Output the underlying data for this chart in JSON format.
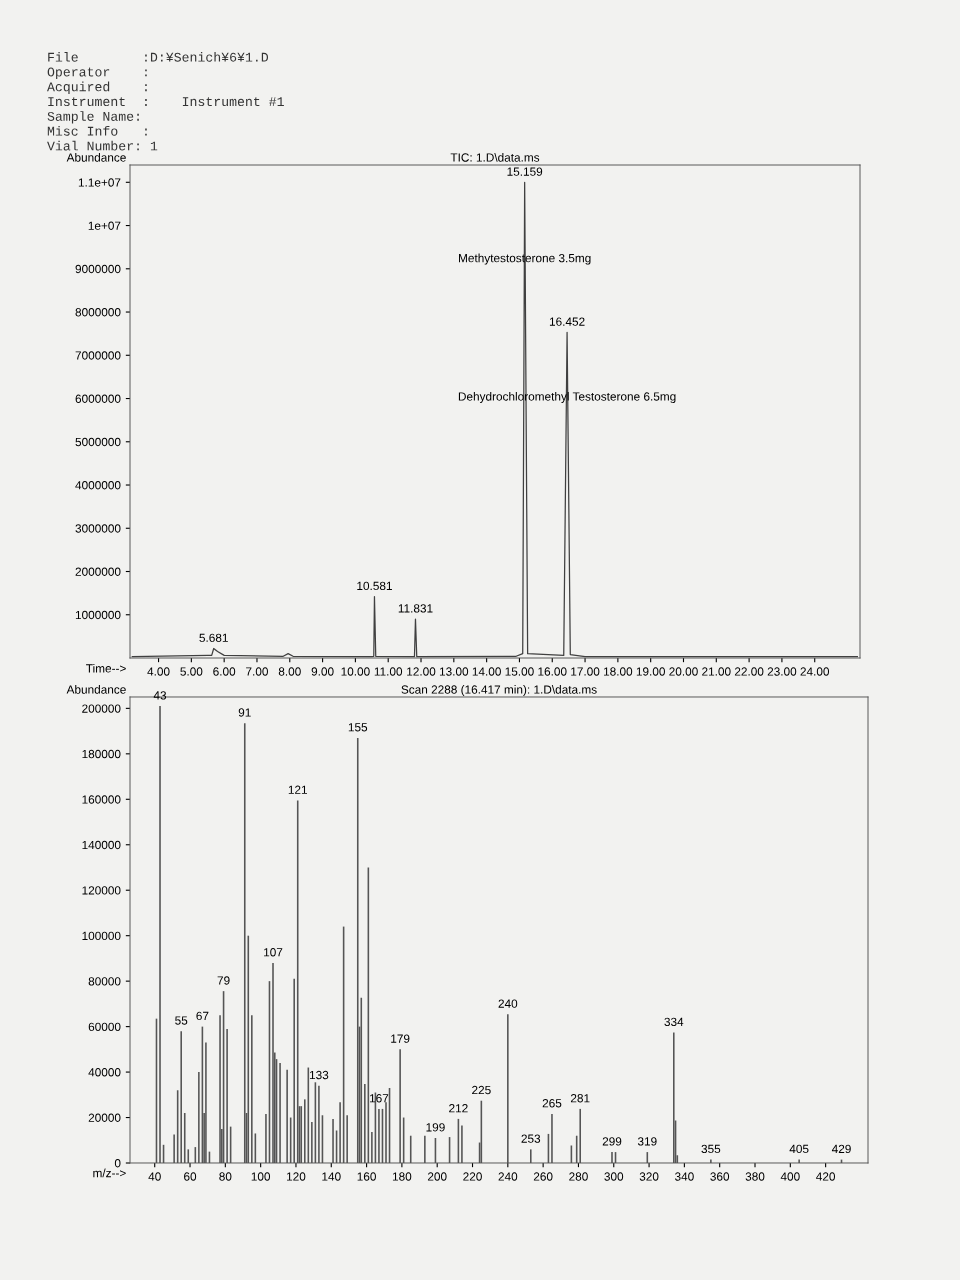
{
  "chart_data": [
    {
      "type": "line",
      "title": "TIC: 1.D\\data.ms",
      "xlabel": "Time-->",
      "ylabel": "Abundance",
      "annotations": [
        "File        :D:¥Senich¥6¥1.D",
        "Operator    :",
        "Acquired    :",
        "Instrument  :    Instrument #1",
        "Sample Name:",
        "Misc Info   :",
        "Vial Number: 1",
        {
          "text": "5.681",
          "x": 5.681,
          "y": 220000
        },
        {
          "text": "10.581",
          "x": 10.581,
          "y": 1420000
        },
        {
          "text": "11.831",
          "x": 11.831,
          "y": 900000
        },
        {
          "text": "15.159",
          "x": 15.159,
          "y": 11000000
        },
        {
          "text": "16.452",
          "x": 16.452,
          "y": 7530000
        },
        {
          "text": "Methytestosterone 3.5mg",
          "x": 15.159,
          "y": 9000000
        },
        {
          "text": "Dehydrochloromethyl Testosterone 6.5mg",
          "x": 16.452,
          "y": 5800000
        }
      ],
      "series": [
        {
          "color": "#404040",
          "x": [
            3.2,
            5.5,
            5.62,
            5.681,
            5.8,
            6.0,
            7.8,
            7.95,
            8.1,
            10.5,
            10.56,
            10.581,
            10.62,
            11.8,
            11.831,
            11.87,
            14.9,
            15.1,
            15.159,
            15.25,
            16.35,
            16.452,
            16.55,
            17.0,
            25.3
          ],
          "values": [
            30000,
            60000,
            60000,
            220000,
            150000,
            60000,
            40000,
            100000,
            40000,
            30000,
            40000,
            1420000,
            40000,
            30000,
            900000,
            30000,
            40000,
            100000,
            11000000,
            100000,
            60000,
            7530000,
            80000,
            30000,
            30000
          ]
        }
      ],
      "xlim": [
        3.13,
        25.38
      ],
      "ylim": [
        0,
        11400000
      ],
      "xticks": [
        {
          "value": 4,
          "label": "4.00"
        },
        {
          "value": 5,
          "label": "5.00"
        },
        {
          "value": 6,
          "label": "6.00"
        },
        {
          "value": 7,
          "label": "7.00"
        },
        {
          "value": 8,
          "label": "8.00"
        },
        {
          "value": 9,
          "label": "9.00"
        },
        {
          "value": 10,
          "label": "10.00"
        },
        {
          "value": 11,
          "label": "11.00"
        },
        {
          "value": 12,
          "label": "12.00"
        },
        {
          "value": 13,
          "label": "13.00"
        },
        {
          "value": 14,
          "label": "14.00"
        },
        {
          "value": 15,
          "label": "15.00"
        },
        {
          "value": 16,
          "label": "16.00"
        },
        {
          "value": 17,
          "label": "17.00"
        },
        {
          "value": 18,
          "label": "18.00"
        },
        {
          "value": 19,
          "label": "19.00"
        },
        {
          "value": 20,
          "label": "20.00"
        },
        {
          "value": 21,
          "label": "21.00"
        },
        {
          "value": 22,
          "label": "22.00"
        },
        {
          "value": 23,
          "label": "23.00"
        },
        {
          "value": 24,
          "label": "24.00"
        }
      ],
      "yticks": [
        1000000,
        2000000,
        3000000,
        4000000,
        5000000,
        6000000,
        7000000,
        8000000,
        9000000,
        {
          "value": 10000000,
          "label": "1e+07"
        },
        {
          "value": 11000000,
          "label": "1.1e+07"
        }
      ],
      "grid": false,
      "legend": false
    },
    {
      "type": "bar",
      "title": "Scan 2288 (16.417 min): 1.D\\data.ms",
      "xlabel": "m/z-->",
      "ylabel": "Abundance",
      "x": [
        41,
        43,
        45,
        51,
        53,
        55,
        57,
        59,
        63,
        65,
        67,
        68,
        69,
        71,
        77,
        78,
        79,
        81,
        83,
        91,
        92,
        93,
        95,
        97,
        103,
        105,
        107,
        108,
        109,
        111,
        115,
        117,
        119,
        121,
        122,
        123,
        125,
        127,
        129,
        131,
        133,
        135,
        141,
        143,
        145,
        147,
        149,
        155,
        156,
        157,
        159,
        161,
        163,
        165,
        167,
        169,
        171,
        173,
        179,
        181,
        185,
        193,
        199,
        207,
        212,
        214,
        224,
        225,
        240,
        253,
        263,
        265,
        276,
        279,
        281,
        299,
        301,
        319,
        334,
        335,
        336,
        355,
        405,
        429
      ],
      "values": [
        63500,
        201000,
        8000,
        12500,
        32000,
        58000,
        22000,
        6000,
        7000,
        40000,
        60000,
        22000,
        53000,
        5000,
        65000,
        15000,
        75600,
        59000,
        16000,
        193500,
        22000,
        100000,
        65000,
        13000,
        21600,
        80000,
        88000,
        48600,
        45700,
        44000,
        41000,
        20000,
        81000,
        159500,
        25000,
        25000,
        28000,
        42000,
        18000,
        35500,
        34000,
        21000,
        19400,
        14300,
        26700,
        104000,
        21000,
        187000,
        60000,
        72700,
        34700,
        130000,
        13600,
        31000,
        23800,
        23800,
        26700,
        33000,
        50000,
        20000,
        12000,
        12000,
        11000,
        11400,
        19400,
        16500,
        9000,
        27400,
        65400,
        6000,
        12800,
        21600,
        7700,
        12000,
        23800,
        4800,
        4800,
        4800,
        57400,
        18700,
        3400,
        1500,
        1500,
        1500
      ],
      "color": "#555555",
      "annotations": [
        {
          "text": "43",
          "x": 43,
          "y": 201000
        },
        {
          "text": "55",
          "x": 55,
          "y": 58000
        },
        {
          "text": "67",
          "x": 67,
          "y": 60000
        },
        {
          "text": "79",
          "x": 79,
          "y": 75600
        },
        {
          "text": "91",
          "x": 91,
          "y": 193500
        },
        {
          "text": "107",
          "x": 107,
          "y": 88000
        },
        {
          "text": "121",
          "x": 121,
          "y": 159500
        },
        {
          "text": "133",
          "x": 133,
          "y": 34000
        },
        {
          "text": "155",
          "x": 155,
          "y": 187000
        },
        {
          "text": "167",
          "x": 167,
          "y": 23800
        },
        {
          "text": "179",
          "x": 179,
          "y": 50000
        },
        {
          "text": "199",
          "x": 199,
          "y": 11000
        },
        {
          "text": "212",
          "x": 212,
          "y": 19400
        },
        {
          "text": "225",
          "x": 225,
          "y": 27400
        },
        {
          "text": "240",
          "x": 240,
          "y": 65400
        },
        {
          "text": "253",
          "x": 253,
          "y": 6000
        },
        {
          "text": "265",
          "x": 265,
          "y": 21600
        },
        {
          "text": "281",
          "x": 281,
          "y": 23800
        },
        {
          "text": "299",
          "x": 299,
          "y": 4800
        },
        {
          "text": "319",
          "x": 319,
          "y": 4800
        },
        {
          "text": "334",
          "x": 334,
          "y": 57400
        },
        {
          "text": "355",
          "x": 355,
          "y": 1500
        },
        {
          "text": "405",
          "x": 405,
          "y": 1500
        },
        {
          "text": "429",
          "x": 429,
          "y": 1500
        }
      ],
      "xlim": [
        26,
        444
      ],
      "ylim": [
        0,
        205000
      ],
      "xticks": [
        40,
        60,
        80,
        100,
        120,
        140,
        160,
        180,
        200,
        220,
        240,
        260,
        280,
        300,
        320,
        340,
        360,
        380,
        400,
        420
      ],
      "yticks": [
        0,
        20000,
        40000,
        60000,
        80000,
        100000,
        120000,
        140000,
        160000,
        180000,
        200000
      ],
      "grid": false,
      "legend": false
    }
  ]
}
